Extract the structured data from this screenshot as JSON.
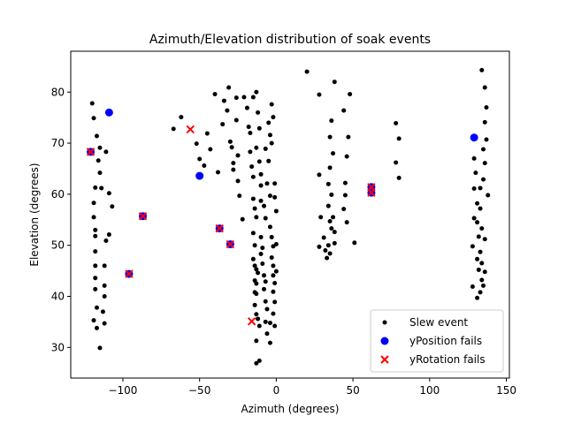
{
  "chart_data": {
    "type": "scatter",
    "title": "Azimuth/Elevation distribution of soak events",
    "xlabel": "Azimuth (degrees)",
    "ylabel": "Elevation (degrees)",
    "xlim": [
      -134,
      152
    ],
    "ylim": [
      24,
      88
    ],
    "xticks": [
      -100,
      -50,
      0,
      50,
      100,
      150
    ],
    "yticks": [
      30,
      40,
      50,
      60,
      70,
      80
    ],
    "legend_position": "lower-right",
    "series": [
      {
        "name": "Slew event",
        "marker": "dot",
        "color": "#000000",
        "points": [
          [
            -120,
            77.8
          ],
          [
            -119,
            74.9
          ],
          [
            -117,
            71.4
          ],
          [
            -115,
            69.1
          ],
          [
            -116,
            66.6
          ],
          [
            -115,
            64.2
          ],
          [
            -114,
            61.2
          ],
          [
            -118,
            61.3
          ],
          [
            -119,
            58.3
          ],
          [
            -119,
            55.5
          ],
          [
            -118,
            53.0
          ],
          [
            -118,
            51.8
          ],
          [
            -118,
            48.8
          ],
          [
            -118,
            46.0
          ],
          [
            -118,
            43.6
          ],
          [
            -118,
            41.4
          ],
          [
            -117,
            37.8
          ],
          [
            -119,
            35.3
          ],
          [
            -117,
            33.8
          ],
          [
            -115,
            29.9
          ],
          [
            -111,
            68.3
          ],
          [
            -109,
            60.2
          ],
          [
            -107,
            57.6
          ],
          [
            -109,
            52.1
          ],
          [
            -111,
            50.9
          ],
          [
            -112,
            46.0
          ],
          [
            -112,
            42.1
          ],
          [
            -112,
            40.0
          ],
          [
            -113,
            37.0
          ],
          [
            -112,
            34.7
          ],
          [
            -67,
            72.8
          ],
          [
            -62,
            75.1
          ],
          [
            -52,
            69.9
          ],
          [
            -50,
            66.9
          ],
          [
            -47,
            65.6
          ],
          [
            -45,
            71.9
          ],
          [
            -43,
            68.8
          ],
          [
            -40,
            79.6
          ],
          [
            -38,
            64.3
          ],
          [
            -35,
            73.7
          ],
          [
            -34,
            78.3
          ],
          [
            -32,
            76.4
          ],
          [
            -31,
            80.9
          ],
          [
            -30,
            70.3
          ],
          [
            -29,
            69.2
          ],
          [
            -28,
            64.8
          ],
          [
            -28,
            66.1
          ],
          [
            -26,
            78.9
          ],
          [
            -26,
            74.5
          ],
          [
            -25,
            67.6
          ],
          [
            -25,
            62.6
          ],
          [
            -24,
            59.7
          ],
          [
            -22,
            55.1
          ],
          [
            -21,
            79.0
          ],
          [
            -19,
            76.9
          ],
          [
            -18,
            73.2
          ],
          [
            -17,
            72.0
          ],
          [
            -17,
            68.3
          ],
          [
            -16,
            65.4
          ],
          [
            -15,
            63.4
          ],
          [
            -15,
            59.1
          ],
          [
            -14,
            57.2
          ],
          [
            -13,
            55.5
          ],
          [
            -15,
            79.0
          ],
          [
            -13,
            69.1
          ],
          [
            -12,
            76.0
          ],
          [
            -11,
            72.9
          ],
          [
            -11,
            66.4
          ],
          [
            -10,
            63.9
          ],
          [
            -10,
            61.7
          ],
          [
            -10,
            58.7
          ],
          [
            -8,
            57.7
          ],
          [
            -7,
            55.3
          ],
          [
            -7,
            68.9
          ],
          [
            -5,
            66.5
          ],
          [
            -6,
            62.1
          ],
          [
            -4,
            59.7
          ],
          [
            -4,
            71.6
          ],
          [
            -5,
            74.0
          ],
          [
            -3,
            70.0
          ],
          [
            -3,
            77.6
          ],
          [
            -2,
            75.1
          ],
          [
            -1,
            62.1
          ],
          [
            -1,
            59.4
          ],
          [
            0,
            56.7
          ],
          [
            -13,
            80.0
          ],
          [
            -15,
            52.4
          ],
          [
            -14,
            50.0
          ],
          [
            -15,
            47.3
          ],
          [
            -14,
            46.0
          ],
          [
            -13,
            45.3
          ],
          [
            -12,
            44.6
          ],
          [
            -14,
            43.1
          ],
          [
            -13,
            42.5
          ],
          [
            -14,
            40.8
          ],
          [
            -13,
            40.5
          ],
          [
            -14,
            38.3
          ],
          [
            -13,
            36.5
          ],
          [
            -12,
            35.6
          ],
          [
            -11,
            34.2
          ],
          [
            -13,
            31.3
          ],
          [
            -13,
            26.9
          ],
          [
            -10,
            51.6
          ],
          [
            -9,
            49.5
          ],
          [
            -10,
            48.3
          ],
          [
            -9,
            46.4
          ],
          [
            -8,
            44.1
          ],
          [
            -7,
            42.9
          ],
          [
            -8,
            41.4
          ],
          [
            -7,
            39.0
          ],
          [
            -6,
            37.5
          ],
          [
            -7,
            35.0
          ],
          [
            -6,
            32.7
          ],
          [
            -4,
            30.9
          ],
          [
            -11,
            27.4
          ],
          [
            -4,
            53.6
          ],
          [
            -3,
            51.6
          ],
          [
            -2,
            49.8
          ],
          [
            -3,
            47.6
          ],
          [
            -2,
            46.0
          ],
          [
            -2,
            44.1
          ],
          [
            -1,
            42.6
          ],
          [
            -2,
            40.9
          ],
          [
            -1,
            38.9
          ],
          [
            -2,
            36.6
          ],
          [
            -1,
            34.2
          ],
          [
            0,
            50.2
          ],
          [
            0,
            44.9
          ],
          [
            -4,
            34.8
          ],
          [
            20,
            84.0
          ],
          [
            28,
            79.5
          ],
          [
            38,
            82.0
          ],
          [
            36,
            74.4
          ],
          [
            35,
            71.2
          ],
          [
            37,
            68.0
          ],
          [
            35,
            65.2
          ],
          [
            28,
            63.8
          ],
          [
            34,
            62.0
          ],
          [
            36,
            59.9
          ],
          [
            34,
            57.7
          ],
          [
            37,
            55.5
          ],
          [
            29,
            55.5
          ],
          [
            35,
            54.7
          ],
          [
            36,
            53.3
          ],
          [
            38,
            52.6
          ],
          [
            31,
            51.5
          ],
          [
            34,
            50.0
          ],
          [
            28,
            49.7
          ],
          [
            32,
            49.0
          ],
          [
            35,
            48.4
          ],
          [
            33,
            47.5
          ],
          [
            38,
            50.4
          ],
          [
            44,
            76.4
          ],
          [
            47,
            71.2
          ],
          [
            45,
            62.2
          ],
          [
            48,
            79.6
          ],
          [
            51,
            50.5
          ],
          [
            45,
            59.8
          ],
          [
            46,
            54.5
          ],
          [
            44,
            57.1
          ],
          [
            46,
            67.4
          ],
          [
            78,
            73.9
          ],
          [
            78,
            66.2
          ],
          [
            80,
            70.9
          ],
          [
            80,
            63.2
          ],
          [
            134,
            84.3
          ],
          [
            136,
            80.9
          ],
          [
            137,
            77.0
          ],
          [
            136,
            74.1
          ],
          [
            137,
            70.7
          ],
          [
            135,
            68.8
          ],
          [
            129,
            67.0
          ],
          [
            136,
            66.1
          ],
          [
            130,
            64.2
          ],
          [
            135,
            62.9
          ],
          [
            129,
            61.1
          ],
          [
            133,
            61.2
          ],
          [
            138,
            59.8
          ],
          [
            131,
            58.2
          ],
          [
            133,
            57.2
          ],
          [
            129,
            55.3
          ],
          [
            131,
            54.5
          ],
          [
            134,
            53.3
          ],
          [
            132,
            51.7
          ],
          [
            136,
            51.2
          ],
          [
            128,
            49.8
          ],
          [
            133,
            48.7
          ],
          [
            131,
            47.3
          ],
          [
            134,
            46.5
          ],
          [
            132,
            45.2
          ],
          [
            136,
            44.8
          ],
          [
            134,
            43.2
          ],
          [
            128,
            41.9
          ],
          [
            133,
            40.8
          ],
          [
            131,
            39.7
          ],
          [
            135,
            42.1
          ]
        ]
      },
      {
        "name": "yPosition fails",
        "marker": "circle",
        "color": "#0000ff",
        "points": [
          [
            -121,
            68.3
          ],
          [
            -109,
            76.0
          ],
          [
            -96,
            44.4
          ],
          [
            -87,
            55.7
          ],
          [
            -50,
            63.6
          ],
          [
            -37,
            53.3
          ],
          [
            -30,
            50.2
          ],
          [
            62,
            61.4
          ],
          [
            62,
            60.3
          ],
          [
            129,
            71.1
          ]
        ]
      },
      {
        "name": "yRotation fails",
        "marker": "x",
        "color": "#ff0000",
        "points": [
          [
            -121,
            68.3
          ],
          [
            -96,
            44.4
          ],
          [
            -87,
            55.7
          ],
          [
            -56,
            72.7
          ],
          [
            -37,
            53.3
          ],
          [
            -30,
            50.2
          ],
          [
            -16,
            35.1
          ],
          [
            62,
            61.4
          ],
          [
            62,
            60.3
          ]
        ]
      }
    ]
  }
}
